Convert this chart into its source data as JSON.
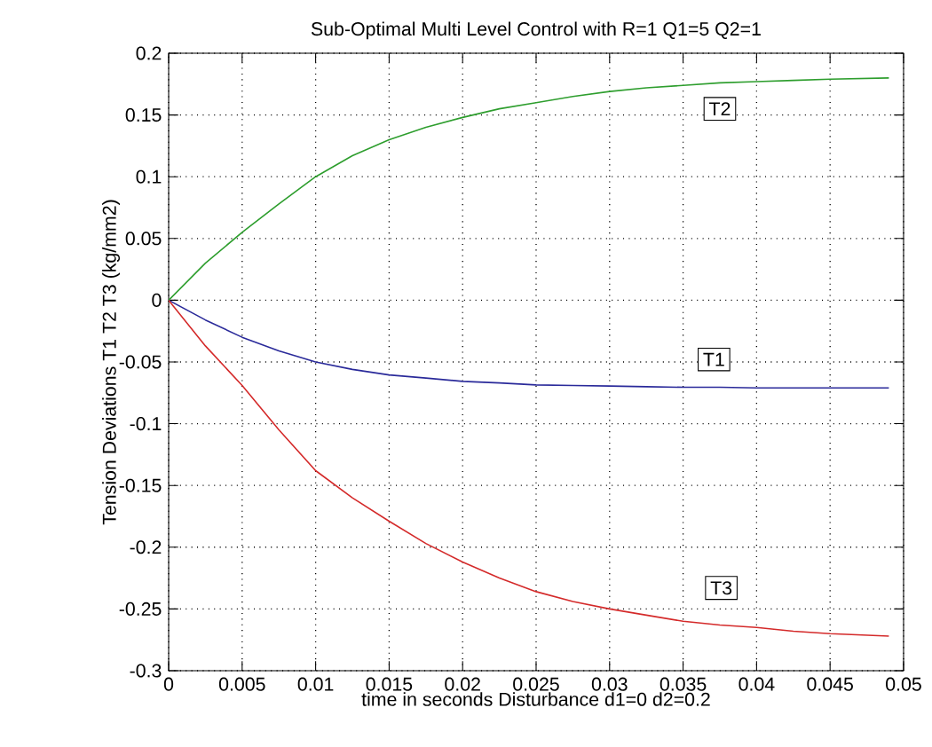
{
  "chart_data": {
    "type": "line",
    "title": "Sub-Optimal Multi Level Control with   R=1  Q1=5  Q2=1",
    "xlabel": "time in seconds      Disturbance  d1=0  d2=0.2",
    "ylabel": "Tension Deviations  T1  T2  T3  (kg/mm2)",
    "x": [
      0,
      0.0025,
      0.005,
      0.0075,
      0.01,
      0.0125,
      0.015,
      0.0175,
      0.02,
      0.0225,
      0.025,
      0.0275,
      0.03,
      0.0325,
      0.035,
      0.0375,
      0.04,
      0.0425,
      0.045,
      0.049
    ],
    "series": [
      {
        "color": "#2a2a9a",
        "values": [
          0,
          -0.016,
          -0.03,
          -0.041,
          -0.05,
          -0.056,
          -0.0605,
          -0.063,
          -0.0657,
          -0.067,
          -0.0686,
          -0.069,
          -0.0695,
          -0.07,
          -0.0705,
          -0.0705,
          -0.071,
          -0.071,
          -0.071,
          -0.071
        ]
      },
      {
        "color": "#2e9e2e",
        "values": [
          0,
          0.03,
          0.055,
          0.078,
          0.1,
          0.117,
          0.13,
          0.14,
          0.148,
          0.155,
          0.16,
          0.165,
          0.169,
          0.172,
          0.174,
          0.176,
          0.177,
          0.178,
          0.179,
          0.18
        ]
      },
      {
        "color": "#d42a2a",
        "values": [
          0,
          -0.037,
          -0.069,
          -0.105,
          -0.138,
          -0.16,
          -0.179,
          -0.197,
          -0.212,
          -0.225,
          -0.236,
          -0.244,
          -0.25,
          -0.255,
          -0.26,
          -0.263,
          -0.265,
          -0.268,
          -0.27,
          -0.272
        ]
      }
    ],
    "annotations": [
      {
        "text": "T2",
        "x": 0.0375,
        "y": 0.155
      },
      {
        "text": "T1",
        "x": 0.0371,
        "y": -0.048
      },
      {
        "text": "T3",
        "x": 0.0376,
        "y": -0.233
      }
    ],
    "xlim": [
      0,
      0.05
    ],
    "ylim": [
      -0.3,
      0.2
    ],
    "xticks": [
      0,
      0.005,
      0.01,
      0.015,
      0.02,
      0.025,
      0.03,
      0.035,
      0.04,
      0.045,
      0.05
    ],
    "yticks": [
      -0.3,
      -0.25,
      -0.2,
      -0.15,
      -0.1,
      -0.05,
      0,
      0.05,
      0.1,
      0.15,
      0.2
    ],
    "grid": true,
    "line_style": "solid"
  }
}
